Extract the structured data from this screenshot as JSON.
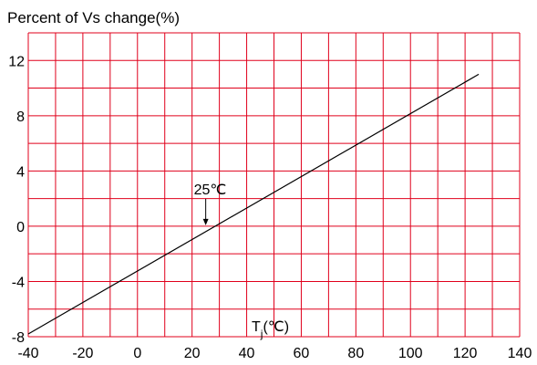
{
  "chart_data": {
    "type": "line",
    "title": "Percent of Vs change(%)",
    "xlabel": "",
    "ylabel": "",
    "xlim": [
      -40,
      140
    ],
    "ylim": [
      -8,
      14
    ],
    "x_gridlines": [
      -40,
      -30,
      -20,
      -10,
      0,
      10,
      20,
      30,
      40,
      50,
      60,
      70,
      80,
      90,
      100,
      110,
      120,
      130,
      140
    ],
    "y_gridlines": [
      -8,
      -6,
      -4,
      -2,
      0,
      2,
      4,
      6,
      8,
      10,
      12,
      14
    ],
    "x_tick_labels": [
      "-40",
      "-20",
      "0",
      "20",
      "40",
      "60",
      "80",
      "100",
      "120",
      "140"
    ],
    "y_tick_labels": [
      "-8",
      "-4",
      "0",
      "4",
      "8",
      "12"
    ],
    "grid": true,
    "grid_color": "#e0001b",
    "line_color": "#000000",
    "series": [
      {
        "x": [
          -40,
          125
        ],
        "y": [
          -7.8,
          11.0
        ]
      }
    ],
    "annotations": [
      {
        "text": "25℃",
        "x": 25,
        "y": 0,
        "arrow": true
      },
      {
        "text_main": "T",
        "text_sub": "j",
        "text_tail": "(℃)"
      }
    ]
  }
}
